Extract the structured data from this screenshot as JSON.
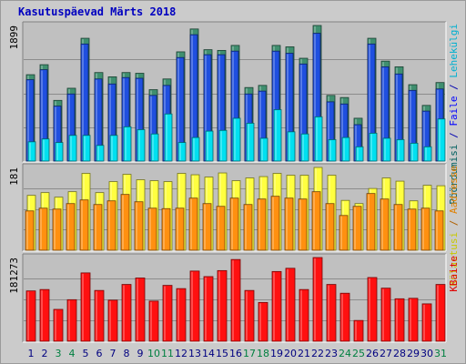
{
  "title": "Kasutuspäevad Märts 2018",
  "chart_data": [
    {
      "type": "bar",
      "panel": "top",
      "ylim": [
        0,
        1899
      ],
      "y_tick_label": "1899",
      "right_labels": [
        {
          "text": "Pöördumisi",
          "color": "#006060"
        },
        {
          "text": " / ",
          "color": "#0000b0"
        },
        {
          "text": "Faile",
          "color": "#0000ff"
        },
        {
          "text": " / ",
          "color": "#0000b0"
        },
        {
          "text": "Lehekülgi",
          "color": "#00b0d0"
        }
      ],
      "categories": [
        "1",
        "2",
        "3",
        "4",
        "5",
        "6",
        "7",
        "8",
        "9",
        "10",
        "11",
        "12",
        "13",
        "14",
        "15",
        "16",
        "17",
        "18",
        "19",
        "20",
        "21",
        "22",
        "23",
        "24",
        "25",
        "26",
        "27",
        "28",
        "29",
        "30",
        "31"
      ],
      "series": [
        {
          "name": "Pöördumisi",
          "color": "#3f8f6f",
          "values": [
            1210,
            1350,
            850,
            1020,
            1720,
            1240,
            1180,
            1240,
            1230,
            1000,
            1150,
            1530,
            1850,
            1560,
            1550,
            1620,
            1030,
            1060,
            1620,
            1600,
            1440,
            1899,
            920,
            890,
            600,
            1720,
            1400,
            1320,
            1070,
            780,
            1100
          ]
        },
        {
          "name": "Faile",
          "color": "#1f4fdf",
          "values": [
            1140,
            1280,
            770,
            940,
            1640,
            1150,
            1080,
            1170,
            1160,
            920,
            1060,
            1450,
            1770,
            1490,
            1490,
            1540,
            940,
            980,
            1540,
            1510,
            1360,
            1790,
            830,
            800,
            510,
            1640,
            1320,
            1220,
            990,
            700,
            1010
          ]
        },
        {
          "name": "Lehekülgi",
          "color": "#00e0f0",
          "values": [
            270,
            310,
            260,
            360,
            360,
            220,
            360,
            480,
            440,
            380,
            660,
            260,
            330,
            420,
            430,
            600,
            530,
            320,
            720,
            410,
            380,
            620,
            300,
            330,
            200,
            390,
            320,
            300,
            250,
            200,
            590
          ]
        }
      ]
    },
    {
      "type": "bar",
      "panel": "middle",
      "ylim": [
        0,
        181
      ],
      "y_tick_label": "181",
      "right_labels": [
        {
          "text": "Külastusi",
          "color": "#c8c800"
        },
        {
          "text": " / ",
          "color": "#b06000"
        },
        {
          "text": "Aadresse",
          "color": "#e08000"
        }
      ],
      "categories": [
        "1",
        "2",
        "3",
        "4",
        "5",
        "6",
        "7",
        "8",
        "9",
        "10",
        "11",
        "12",
        "13",
        "14",
        "15",
        "16",
        "17",
        "18",
        "19",
        "20",
        "21",
        "22",
        "23",
        "24",
        "25",
        "26",
        "27",
        "28",
        "29",
        "30",
        "31"
      ],
      "series": [
        {
          "name": "Külastusi",
          "color": "#ffff40",
          "values": [
            120,
            126,
            116,
            128,
            168,
            126,
            150,
            166,
            154,
            152,
            150,
            168,
            165,
            160,
            169,
            152,
            158,
            161,
            168,
            164,
            164,
            181,
            164,
            109,
            102,
            135,
            158,
            151,
            108,
            142,
            141
          ]
        },
        {
          "name": "Aadresse",
          "color": "#ff9010",
          "values": [
            86,
            92,
            90,
            102,
            110,
            100,
            108,
            122,
            106,
            92,
            91,
            92,
            114,
            102,
            96,
            114,
            100,
            112,
            118,
            114,
            112,
            128,
            102,
            76,
            96,
            124,
            112,
            100,
            90,
            92,
            86
          ]
        }
      ]
    },
    {
      "type": "bar",
      "panel": "bottom",
      "ylim": [
        0,
        181273
      ],
      "y_tick_label": "181273",
      "right_labels": [
        {
          "text": "KBaite",
          "color": "#e00000"
        }
      ],
      "categories": [
        "1",
        "2",
        "3",
        "4",
        "5",
        "6",
        "7",
        "8",
        "9",
        "10",
        "11",
        "12",
        "13",
        "14",
        "15",
        "16",
        "17",
        "18",
        "19",
        "20",
        "21",
        "22",
        "23",
        "24",
        "25",
        "26",
        "27",
        "28",
        "29",
        "30",
        "31"
      ],
      "series": [
        {
          "name": "KBaite",
          "color": "#ff1010",
          "values": [
            109000,
            112000,
            69000,
            90000,
            148000,
            110000,
            89000,
            123000,
            137000,
            87000,
            121000,
            114000,
            152000,
            140000,
            153000,
            177000,
            110000,
            84000,
            151000,
            158000,
            112000,
            181273,
            123000,
            104000,
            45000,
            138000,
            115000,
            92000,
            93000,
            81000,
            123000
          ]
        }
      ]
    }
  ],
  "x_axis": {
    "labels": [
      {
        "text": "1",
        "weekend": false
      },
      {
        "text": "2",
        "weekend": false
      },
      {
        "text": "3",
        "weekend": true
      },
      {
        "text": "4",
        "weekend": true
      },
      {
        "text": "5",
        "weekend": false
      },
      {
        "text": "6",
        "weekend": false
      },
      {
        "text": "7",
        "weekend": false
      },
      {
        "text": "8",
        "weekend": false
      },
      {
        "text": "9",
        "weekend": false
      },
      {
        "text": "10",
        "weekend": true
      },
      {
        "text": "11",
        "weekend": true
      },
      {
        "text": "12",
        "weekend": false
      },
      {
        "text": "13",
        "weekend": false
      },
      {
        "text": "14",
        "weekend": false
      },
      {
        "text": "15",
        "weekend": false
      },
      {
        "text": "16",
        "weekend": false
      },
      {
        "text": "17",
        "weekend": true
      },
      {
        "text": "18",
        "weekend": true
      },
      {
        "text": "19",
        "weekend": false
      },
      {
        "text": "20",
        "weekend": false
      },
      {
        "text": "21",
        "weekend": false
      },
      {
        "text": "22",
        "weekend": false
      },
      {
        "text": "23",
        "weekend": false
      },
      {
        "text": "24",
        "weekend": true
      },
      {
        "text": "25",
        "weekend": true
      },
      {
        "text": "26",
        "weekend": false
      },
      {
        "text": "27",
        "weekend": false
      },
      {
        "text": "28",
        "weekend": false
      },
      {
        "text": "29",
        "weekend": false
      },
      {
        "text": "30",
        "weekend": false
      },
      {
        "text": "31",
        "weekend": true
      }
    ],
    "weekday_color": "#000080",
    "weekend_color": "#008040"
  },
  "colors": {
    "background": "#cbcbcb",
    "plot_background": "#c0c0c0",
    "title": "#0000c0",
    "gridline": "#8c8c8c"
  }
}
